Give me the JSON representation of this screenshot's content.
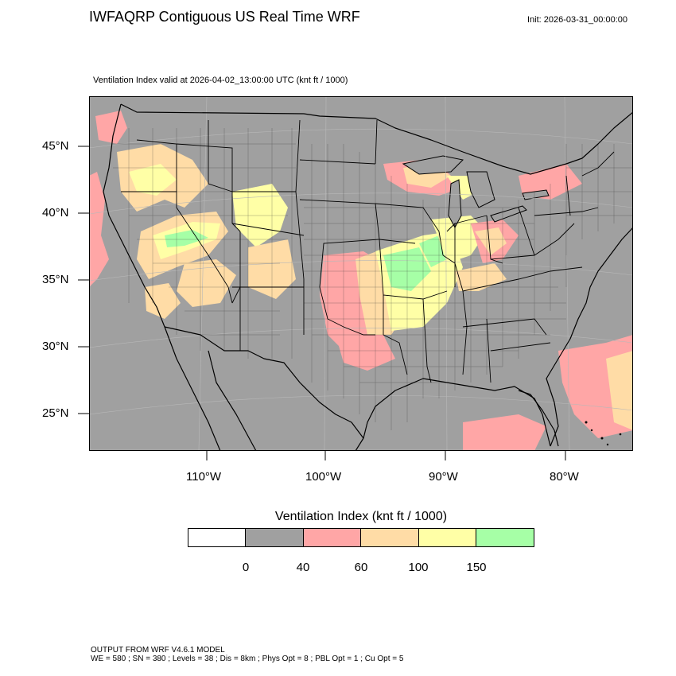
{
  "header": {
    "title": "IWFAQRP Contiguous US Real Time WRF",
    "init": "Init: 2026-03-31_00:00:00",
    "subtitle": "Ventilation Index valid at 2026-04-02_13:00:00 UTC   (knt ft / 1000)"
  },
  "map": {
    "latitudes": [
      "45°N",
      "40°N",
      "35°N",
      "30°N",
      "25°N"
    ],
    "longitudes": [
      "110°W",
      "100°W",
      "90°W",
      "80°W"
    ],
    "background_color": "#a0a0a0",
    "boundary_color": "#000000"
  },
  "legend": {
    "title": "Ventilation Index  (knt ft / 1000)",
    "bins": [
      {
        "color": "#ffffff"
      },
      {
        "color": "#a0a0a0"
      },
      {
        "color": "#ffa6a6"
      },
      {
        "color": "#ffdca6"
      },
      {
        "color": "#ffffa6"
      },
      {
        "color": "#a6ffa6"
      }
    ],
    "labels": [
      "0",
      "40",
      "60",
      "100",
      "150"
    ]
  },
  "footer": {
    "line1": "OUTPUT FROM WRF V4.6.1 MODEL",
    "line2": "WE = 580 ; SN = 380 ; Levels = 38 ; Dis = 8km ; Phys Opt = 8 ; PBL Opt = 1 ; Cu Opt = 5"
  }
}
